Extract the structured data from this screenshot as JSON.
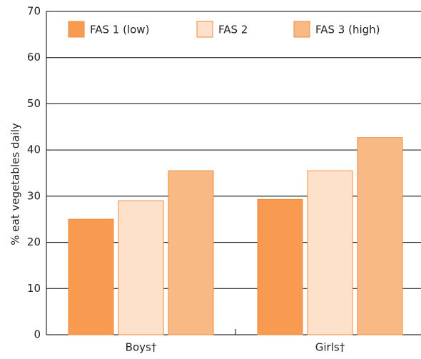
{
  "chart_data": {
    "type": "bar",
    "ylabel": "% eat vegetables daily",
    "categories": [
      "Boys†",
      "Girls†"
    ],
    "series": [
      {
        "name": "FAS 1 (low)",
        "color": "#f89a4f",
        "values": [
          25,
          29.3
        ]
      },
      {
        "name": "FAS 2",
        "color": "#fde1cb",
        "values": [
          29,
          35.5
        ]
      },
      {
        "name": "FAS 3 (high)",
        "color": "#f9b985",
        "values": [
          35.5,
          42.7
        ]
      }
    ],
    "ylim": [
      0,
      70
    ],
    "yticks": [
      0,
      10,
      20,
      30,
      40,
      50,
      60,
      70
    ],
    "grid": true,
    "legend": "top"
  }
}
